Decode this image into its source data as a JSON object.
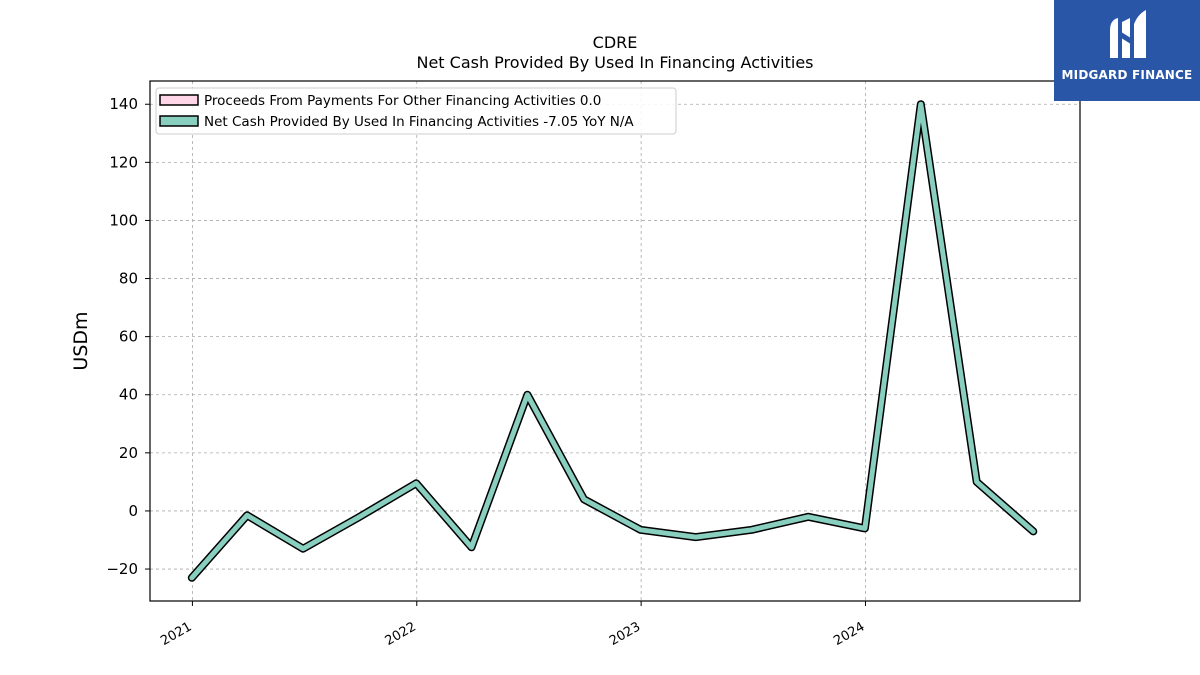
{
  "logo": {
    "text": "MIDGARD FINANCE",
    "icon": "midgard-logo-icon"
  },
  "chart_data": {
    "type": "line",
    "title": "CDRE",
    "subtitle": "Net Cash Provided By Used In Financing Activities",
    "ylabel": "USDm",
    "xlabel": "",
    "ylim": [
      -31,
      148
    ],
    "yticks": [
      -20,
      0,
      20,
      40,
      60,
      80,
      100,
      120,
      140
    ],
    "xlim": [
      "2020-10-24",
      "2024-12-15"
    ],
    "xticks": [
      "2021",
      "2022",
      "2023",
      "2024"
    ],
    "grid": true,
    "legend_position": "top-left",
    "series": [
      {
        "name": "Proceeds From Payments For Other Financing Activities",
        "legend_label": "Proceeds From Payments For Other Financing Activities  0.0",
        "color": "#ffd6e7",
        "x": [],
        "values": []
      },
      {
        "name": "Net Cash Provided By Used In Financing Activities",
        "legend_label": "Net Cash Provided By Used In Financing Activities  -7.05 YoY N/A",
        "color": "#88cfc0",
        "x": [
          "2020-12-31",
          "2021-03-31",
          "2021-06-30",
          "2021-09-30",
          "2021-12-31",
          "2022-03-31",
          "2022-06-30",
          "2022-09-30",
          "2022-12-31",
          "2023-03-31",
          "2023-06-30",
          "2023-09-30",
          "2023-12-31",
          "2024-03-31",
          "2024-06-30",
          "2024-09-30"
        ],
        "values": [
          -23,
          -1.5,
          -13,
          -2,
          9.5,
          -12.5,
          40,
          4,
          -6.5,
          -9,
          -6.5,
          -2,
          -6,
          140,
          10,
          -7.05
        ]
      }
    ]
  }
}
